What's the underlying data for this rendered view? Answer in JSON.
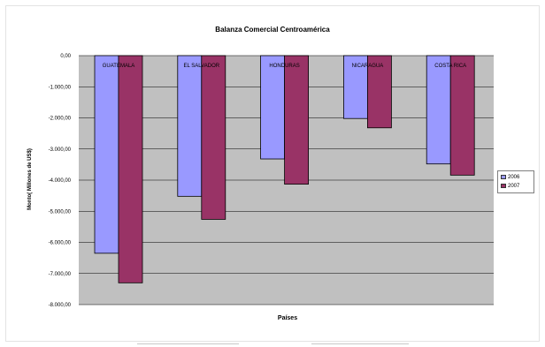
{
  "chart_data": {
    "type": "bar",
    "title": "Balanza Comercial Centroamérica",
    "xlabel": "Países",
    "ylabel": "Monto( Millones de US$)",
    "categories": [
      "GUATEMALA",
      "EL SALVADOR",
      "HONDURAS",
      "NICARAGUA",
      "COSTA RICA"
    ],
    "series": [
      {
        "name": "2006",
        "values": [
          -6350,
          -4520,
          -3320,
          -2020,
          -3480
        ]
      },
      {
        "name": "2007",
        "values": [
          -7300,
          -5260,
          -4130,
          -2320,
          -3840
        ]
      }
    ],
    "yticks": [
      "0,00",
      "-1.000,00",
      "-2.000,00",
      "-3.000,00",
      "-4.000,00",
      "-5.000,00",
      "-6.000,00",
      "-7.000,00",
      "-8.000,00"
    ],
    "ylim": [
      -8000,
      0
    ],
    "grid": true,
    "legend_position": "right",
    "colors": {
      "series_2006": "#9999ff",
      "series_2007": "#993366",
      "plot_background": "#c0c0c0",
      "gridline": "#000000"
    }
  }
}
